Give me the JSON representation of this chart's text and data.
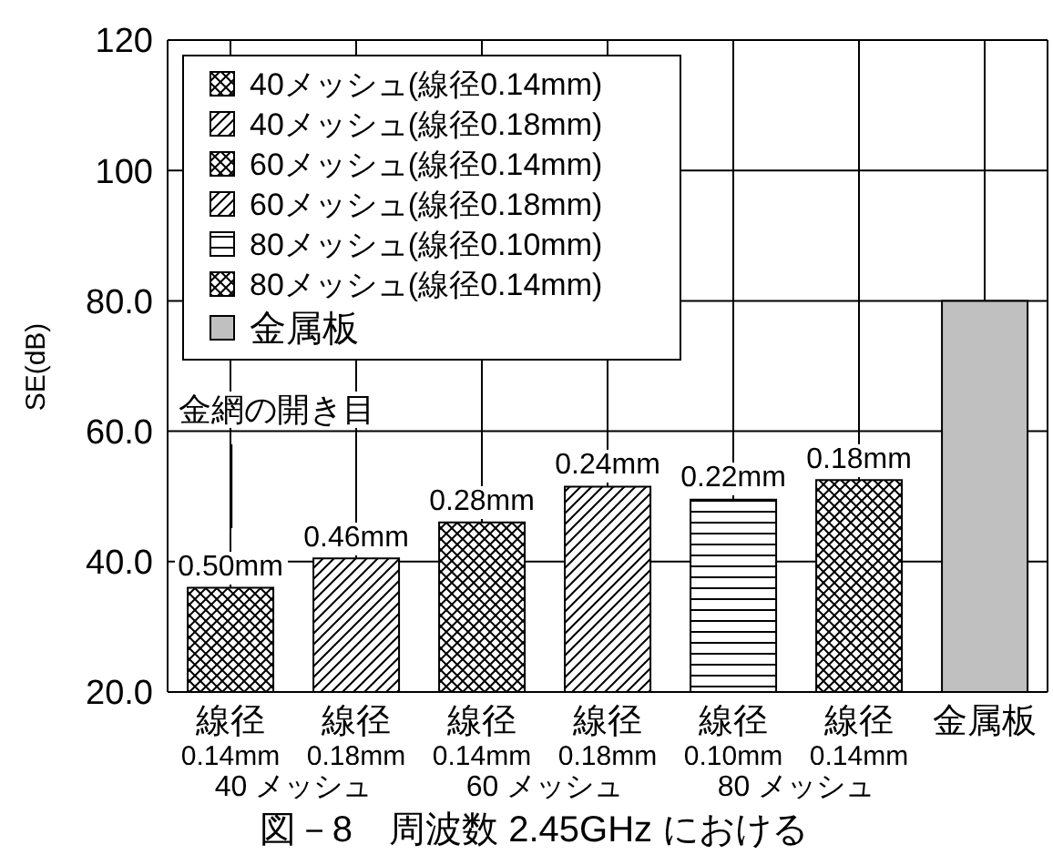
{
  "chart_data": {
    "type": "bar",
    "title": "図－8　周波数 2.45GHz における",
    "ylabel": "SE(dB)",
    "categories": [
      "線径\n0.14mm",
      "線径\n0.18mm",
      "線径\n0.14mm",
      "線径\n0.18mm",
      "線径\n0.10mm",
      "線径\n0.14mm",
      "金属板"
    ],
    "series": [
      {
        "name": "40メッシュ(線径0.14mm)",
        "color": "#000000",
        "values": [
          36,
          null,
          null,
          null,
          null,
          null,
          null
        ]
      },
      {
        "name": "40メッシュ(線径0.18mm)",
        "color": "#000000",
        "values": [
          null,
          40.5,
          null,
          null,
          null,
          null,
          null
        ]
      },
      {
        "name": "60メッシュ(線径0.14mm)",
        "color": "#000000",
        "values": [
          null,
          null,
          46,
          null,
          null,
          null,
          null
        ]
      },
      {
        "name": "60メッシュ(線径0.18mm)",
        "color": "#000000",
        "values": [
          null,
          null,
          null,
          51.5,
          null,
          null,
          null
        ]
      },
      {
        "name": "80メッシュ(線径0.10mm)",
        "color": "#000000",
        "values": [
          null,
          null,
          null,
          null,
          49.5,
          null,
          null
        ]
      },
      {
        "name": "80メッシュ(線径0.14mm)",
        "color": "#000000",
        "values": [
          null,
          null,
          null,
          null,
          null,
          52.5,
          null
        ]
      },
      {
        "name": "金属板",
        "color": "#c0c0c0",
        "values": [
          null,
          null,
          null,
          null,
          null,
          null,
          80
        ]
      }
    ],
    "ylim": [
      20,
      120
    ],
    "yticks": [
      {
        "value": 20,
        "label": "20.0"
      },
      {
        "value": 40,
        "label": "40.0"
      },
      {
        "value": 60,
        "label": "60.0"
      },
      {
        "value": 80,
        "label": "80.0"
      },
      100,
      120
    ],
    "grid": true,
    "legend": "top left",
    "annotations": [
      "金網の開き目",
      "0.50mm",
      "0.46mm",
      "0.28mm",
      "0.24mm",
      "0.22mm",
      "0.18mm",
      "40 メッシュ",
      "60 メッシュ",
      "80 メッシュ"
    ]
  }
}
